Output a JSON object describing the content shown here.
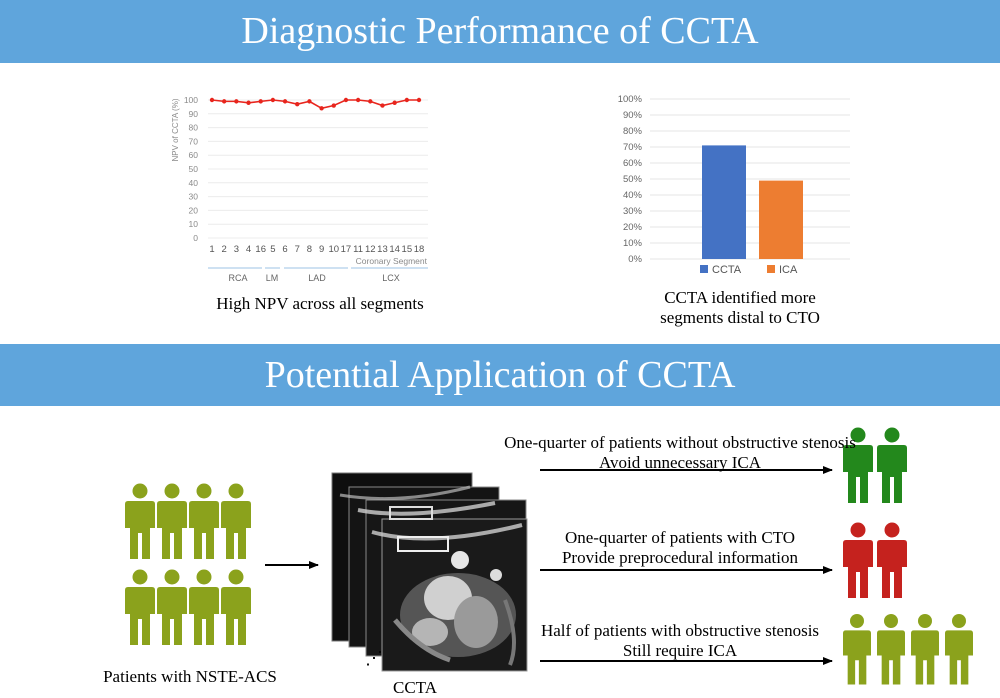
{
  "banners": {
    "top_title": "Diagnostic Performance of CCTA",
    "middle_title": "Potential Application of CCTA"
  },
  "chart_data": [
    {
      "type": "line",
      "ylabel": "NPV of CCTA (%)",
      "xlabel": "Coronary Segment",
      "ylim": [
        0,
        100
      ],
      "yticks": [
        0,
        10,
        20,
        30,
        40,
        50,
        60,
        70,
        80,
        90,
        100
      ],
      "categories": [
        "1",
        "2",
        "3",
        "4",
        "16",
        "5",
        "6",
        "7",
        "8",
        "9",
        "10",
        "17",
        "11",
        "12",
        "13",
        "14",
        "15",
        "18"
      ],
      "values": [
        100,
        99,
        99,
        98,
        99,
        100,
        99,
        97,
        99,
        94,
        96,
        100,
        100,
        99,
        96,
        98,
        100,
        100
      ],
      "color": "#e8251d",
      "groups": [
        "RCA",
        "LM",
        "LAD",
        "LCX"
      ],
      "caption": "High NPV across all segments"
    },
    {
      "type": "bar",
      "ylim": [
        0,
        100
      ],
      "yticks": [
        "0%",
        "10%",
        "20%",
        "30%",
        "40%",
        "50%",
        "60%",
        "70%",
        "80%",
        "90%",
        "100%"
      ],
      "series": [
        {
          "name": "CCTA",
          "value": 71,
          "color": "#4472c4"
        },
        {
          "name": "ICA",
          "value": 49,
          "color": "#ed7d31"
        }
      ],
      "caption_lines": [
        "CCTA identified more",
        "segments distal to CTO"
      ]
    }
  ],
  "workflow": {
    "patients_label": "Patients with  NSTE-ACS",
    "ccta_label": "CCTA",
    "dots": "⋰",
    "colors": {
      "patients": "#8ba21c",
      "no_stenosis": "#23881c",
      "cto": "#c5221e",
      "stenosis": "#8ba21c"
    },
    "outcomes": [
      {
        "line1": "One-quarter of patients without obstructive stenosis",
        "line2": "Avoid unnecessary ICA"
      },
      {
        "line1": "One-quarter of patients with CTO",
        "line2": "Provide preprocedural information"
      },
      {
        "line1": "Half of patients with obstructive stenosis",
        "line2": "Still require ICA"
      }
    ]
  }
}
